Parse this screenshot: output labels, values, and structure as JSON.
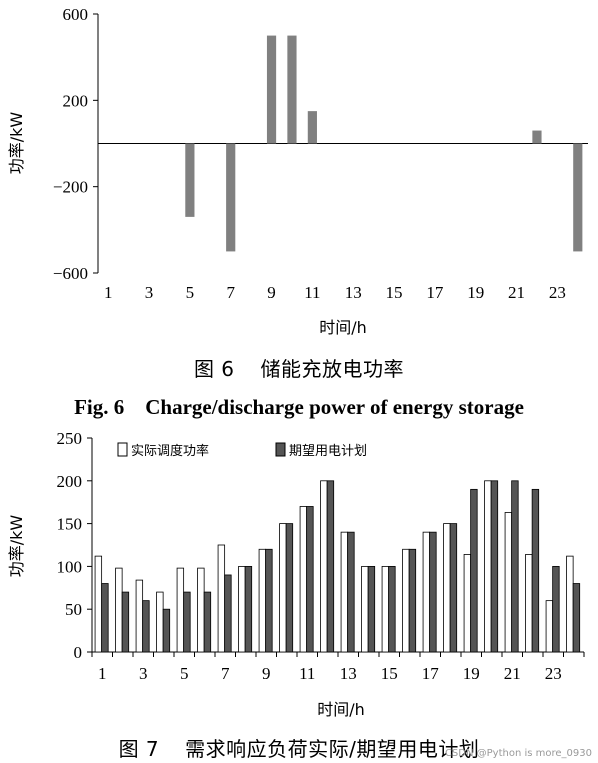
{
  "chart_data": [
    {
      "type": "bar",
      "title": "储能充放电功率",
      "figure_label": "图 6",
      "title_en": "Fig. 6    Charge/discharge power of energy storage",
      "xlabel": "时间/h",
      "ylabel": "功率/kW",
      "ylim": [
        -600,
        600
      ],
      "yticks": [
        "600",
        "200",
        "−200",
        "−600"
      ],
      "ytick_values": [
        600,
        200,
        -200,
        -600
      ],
      "xticks": [
        "1",
        "3",
        "5",
        "7",
        "9",
        "11",
        "13",
        "15",
        "17",
        "19",
        "21",
        "23"
      ],
      "categories": [
        1,
        2,
        3,
        4,
        5,
        6,
        7,
        8,
        9,
        10,
        11,
        12,
        13,
        14,
        15,
        16,
        17,
        18,
        19,
        20,
        21,
        22,
        23,
        24
      ],
      "values": [
        0,
        0,
        0,
        0,
        -340,
        0,
        -500,
        0,
        500,
        500,
        150,
        0,
        0,
        0,
        0,
        0,
        0,
        0,
        0,
        0,
        0,
        60,
        0,
        -500
      ],
      "bar_color": "#808080"
    },
    {
      "type": "bar",
      "title": "需求响应负荷实际/期望用电计划",
      "figure_label": "图 7",
      "xlabel": "时间/h",
      "ylabel": "功率/kW",
      "ylim": [
        0,
        250
      ],
      "yticks": [
        "250",
        "200",
        "150",
        "100",
        "50",
        "0"
      ],
      "ytick_values": [
        250,
        200,
        150,
        100,
        50,
        0
      ],
      "xticks": [
        "1",
        "3",
        "5",
        "7",
        "9",
        "11",
        "13",
        "15",
        "17",
        "19",
        "21",
        "23"
      ],
      "categories": [
        1,
        2,
        3,
        4,
        5,
        6,
        7,
        8,
        9,
        10,
        11,
        12,
        13,
        14,
        15,
        16,
        17,
        18,
        19,
        20,
        21,
        22,
        23,
        24
      ],
      "series": [
        {
          "name": "实际调度功率",
          "color": "#ffffff",
          "values": [
            112,
            98,
            84,
            70,
            98,
            98,
            125,
            100,
            120,
            150,
            170,
            200,
            140,
            100,
            100,
            120,
            140,
            150,
            114,
            200,
            163,
            114,
            60,
            112
          ]
        },
        {
          "name": "期望用电计划",
          "color": "#555555",
          "values": [
            80,
            70,
            60,
            50,
            70,
            70,
            90,
            100,
            120,
            150,
            170,
            200,
            140,
            100,
            100,
            120,
            140,
            150,
            190,
            200,
            200,
            190,
            100,
            80
          ]
        }
      ]
    }
  ],
  "watermark": "CSDN @Python is more_0930"
}
